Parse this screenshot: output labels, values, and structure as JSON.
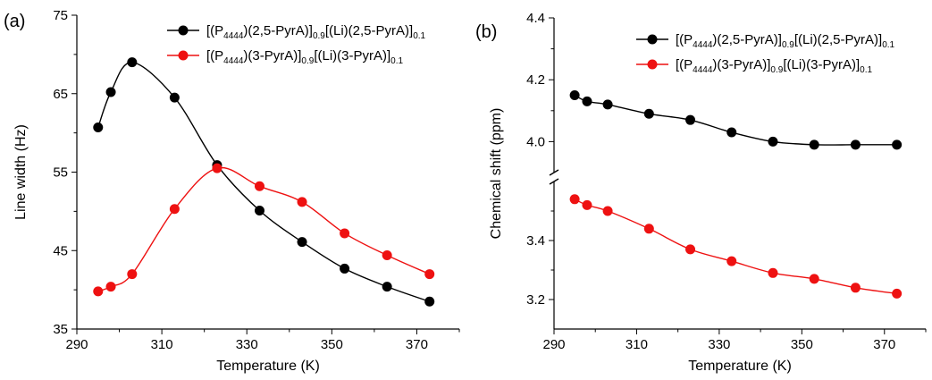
{
  "chart_data": [
    {
      "panel_label": "(a)",
      "type": "line",
      "xlabel": "Temperature (K)",
      "ylabel": "Line width (Hz)",
      "xlim": [
        290,
        380
      ],
      "ylim": [
        35,
        75
      ],
      "xticks": [
        290,
        310,
        330,
        350,
        370
      ],
      "yticks": [
        35,
        45,
        55,
        65,
        75
      ],
      "legend_position": "top-right",
      "series": [
        {
          "name_parts": [
            "[(P",
            "4444",
            ")(2,5-PyrA)]",
            "0.9",
            "[(Li)(2,5-PyrA)]",
            "0.1"
          ],
          "color": "#000000",
          "x": [
            295,
            298,
            303,
            313,
            323,
            333,
            343,
            353,
            363,
            373
          ],
          "y": [
            60.7,
            65.2,
            69.0,
            64.5,
            55.9,
            50.1,
            46.1,
            42.7,
            40.4,
            38.5
          ]
        },
        {
          "name_parts": [
            "[(P",
            "4444",
            ")(3-PyrA)]",
            "0.9",
            "[(Li)(3-PyrA)]",
            "0.1"
          ],
          "color": "#ee1111",
          "x": [
            295,
            298,
            303,
            313,
            323,
            333,
            343,
            353,
            363,
            373
          ],
          "y": [
            39.8,
            40.4,
            42.0,
            50.3,
            55.5,
            53.2,
            51.2,
            47.2,
            44.4,
            42.0
          ]
        }
      ]
    },
    {
      "panel_label": "(b)",
      "type": "line",
      "xlabel": "Temperature (K)",
      "ylabel": "Chemical shift (ppm)",
      "xlim": [
        290,
        380
      ],
      "xticks": [
        290,
        310,
        330,
        350,
        370
      ],
      "broken_y_axis": true,
      "ylim_upper": [
        3.9,
        4.4
      ],
      "ylim_lower": [
        3.1,
        3.6
      ],
      "yticks_upper": [
        4.0,
        4.2,
        4.4
      ],
      "yticks_lower": [
        3.2,
        3.4
      ],
      "legend_position": "top-right",
      "series": [
        {
          "name_parts": [
            "[(P",
            "4444",
            ")(2,5-PyrA)]",
            "0.9",
            "[(Li)(2,5-PyrA)]",
            "0.1"
          ],
          "color": "#000000",
          "x": [
            295,
            298,
            303,
            313,
            323,
            333,
            343,
            353,
            363,
            373
          ],
          "y": [
            4.15,
            4.13,
            4.12,
            4.09,
            4.07,
            4.03,
            4.0,
            3.99,
            3.99,
            3.99
          ]
        },
        {
          "name_parts": [
            "[(P",
            "4444",
            ")(3-PyrA)]",
            "0.9",
            "[(Li)(3-PyrA)]",
            "0.1"
          ],
          "color": "#ee1111",
          "x": [
            295,
            298,
            303,
            313,
            323,
            333,
            343,
            353,
            363,
            373
          ],
          "y": [
            3.54,
            3.52,
            3.5,
            3.44,
            3.37,
            3.33,
            3.29,
            3.27,
            3.24,
            3.22
          ]
        }
      ]
    }
  ]
}
